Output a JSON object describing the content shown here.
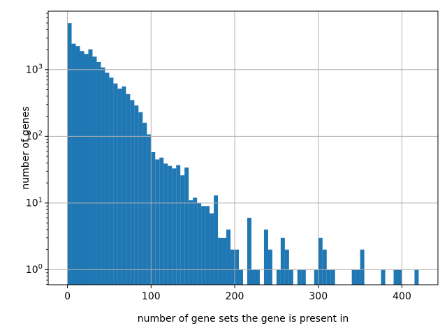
{
  "chart_data": {
    "type": "bar",
    "subtype": "histogram-log-y",
    "title": "",
    "xlabel": "number of gene sets the gene is present in",
    "ylabel": "number of genes",
    "bin_start": 0,
    "bin_width": 5,
    "counts": [
      4980,
      2450,
      2250,
      1900,
      1720,
      2020,
      1570,
      1300,
      1080,
      900,
      760,
      620,
      520,
      560,
      430,
      350,
      290,
      230,
      160,
      107,
      58,
      45,
      48,
      39,
      36,
      33,
      37,
      26,
      34,
      11,
      12,
      10,
      9,
      9,
      7,
      13,
      3,
      3,
      4,
      2,
      2,
      1,
      0,
      6,
      1,
      1,
      0,
      4,
      2,
      0,
      1,
      3,
      2,
      1,
      0,
      1,
      1,
      0,
      0,
      1,
      3,
      2,
      1,
      1,
      0,
      0,
      0,
      0,
      1,
      1,
      2,
      0,
      0,
      0,
      0,
      1,
      0,
      0,
      1,
      1,
      0,
      0,
      0,
      1,
      0
    ],
    "x_ticks": [
      {
        "value": 0,
        "label": "0"
      },
      {
        "value": 100,
        "label": "100"
      },
      {
        "value": 200,
        "label": "200"
      },
      {
        "value": 300,
        "label": "300"
      },
      {
        "value": 400,
        "label": "400"
      }
    ],
    "y_ticks": [
      {
        "value": 1,
        "label_base": "10",
        "label_exp": "0"
      },
      {
        "value": 10,
        "label_base": "10",
        "label_exp": "1"
      },
      {
        "value": 100,
        "label_base": "10",
        "label_exp": "2"
      },
      {
        "value": 1000,
        "label_base": "10",
        "label_exp": "3"
      }
    ],
    "axes": {
      "xlim": [
        -23,
        443
      ],
      "ylim_log10": [
        -0.226,
        3.877
      ],
      "yscale": "log",
      "grid": true,
      "legend": "none"
    },
    "colors": {
      "bar": "#1f77b4",
      "grid": "#b0b0b0",
      "spine": "#000000",
      "background": "#ffffff"
    }
  }
}
